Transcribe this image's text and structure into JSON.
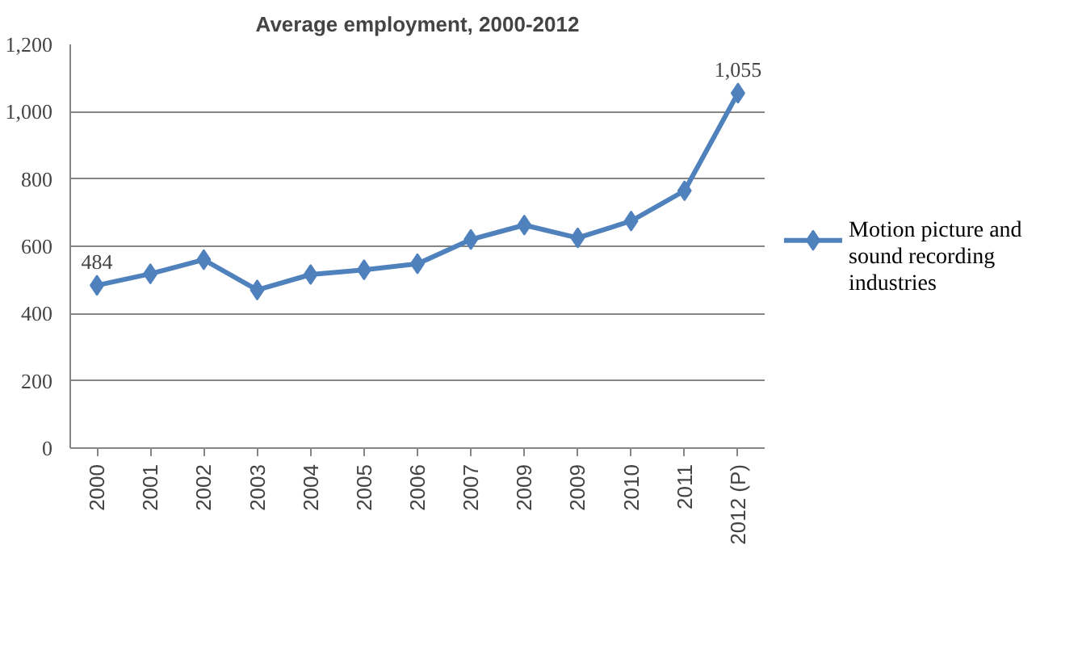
{
  "chart_data": {
    "type": "line",
    "title": "Average employment, 2000-2012",
    "categories": [
      "2000",
      "2001",
      "2002",
      "2003",
      "2004",
      "2005",
      "2006",
      "2007",
      "2009",
      "2009",
      "2010",
      "2011",
      "2012 (P)"
    ],
    "series": [
      {
        "name": "Motion picture and sound recording industries",
        "color": "#4f81bd",
        "values": [
          484,
          518,
          560,
          470,
          516,
          530,
          548,
          620,
          663,
          625,
          675,
          765,
          1055
        ],
        "value_labels": [
          "484",
          null,
          null,
          null,
          null,
          null,
          null,
          null,
          null,
          null,
          null,
          null,
          "1,055"
        ]
      }
    ],
    "ylim": [
      0,
      1200
    ],
    "yticks": [
      0,
      200,
      400,
      600,
      800,
      {
        "value": 1000,
        "label": "1,000"
      },
      {
        "value": 1200,
        "label": "1,200"
      }
    ],
    "grid": "y",
    "legend": "right",
    "marker": "diamond",
    "line_style": "solid"
  }
}
